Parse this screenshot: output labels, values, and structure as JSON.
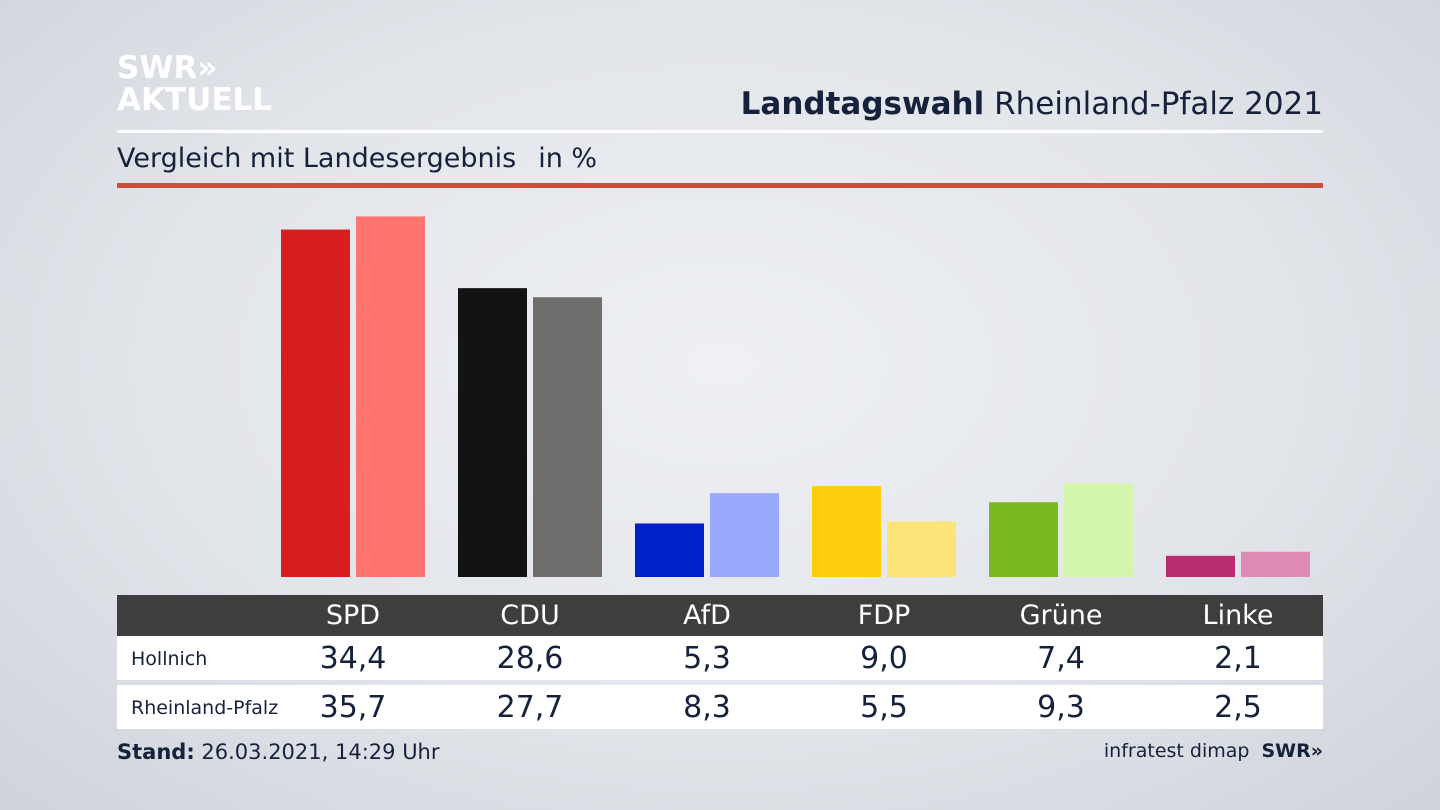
{
  "brand": {
    "logo_line1": "SWR»",
    "logo_line2": "AKTUELL"
  },
  "header": {
    "title_bold": "Landtagswahl",
    "title_rest": "Rheinland-Pfalz 2021",
    "subtitle": "Vergleich mit Landesergebnis",
    "unit": "in %"
  },
  "colors": {
    "accent_rule": "#c9503b",
    "table_header_bg": "#3e3e3e"
  },
  "chart_data": {
    "type": "bar",
    "categories": [
      "SPD",
      "CDU",
      "AfD",
      "FDP",
      "Grüne",
      "Linke"
    ],
    "series": [
      {
        "name": "Hollnich",
        "values": [
          34.4,
          28.6,
          5.3,
          9.0,
          7.4,
          2.1
        ],
        "colors": [
          "#d71f1f",
          "#131313",
          "#0020c8",
          "#fecc0a",
          "#78b920",
          "#b92d6e"
        ]
      },
      {
        "name": "Rheinland-Pfalz",
        "values": [
          35.7,
          27.7,
          8.3,
          5.5,
          9.3,
          2.5
        ],
        "colors": [
          "#ff746e",
          "#6f6e6c",
          "#9ba9fd",
          "#fee478",
          "#d3f5ac",
          "#e08bb5"
        ]
      }
    ],
    "grid": false,
    "legend": "none"
  },
  "table": {
    "headers": [
      "SPD",
      "CDU",
      "AfD",
      "FDP",
      "Grüne",
      "Linke"
    ],
    "rows": [
      {
        "label": "Hollnich",
        "values": [
          "34,4",
          "28,6",
          "5,3",
          "9,0",
          "7,4",
          "2,1"
        ]
      },
      {
        "label": "Rheinland-Pfalz",
        "values": [
          "35,7",
          "27,7",
          "8,3",
          "5,5",
          "9,3",
          "2,5"
        ]
      }
    ]
  },
  "footer": {
    "stand_label": "Stand:",
    "stand_value": "26.03.2021, 14:29 Uhr",
    "source": "infratest dimap",
    "source_logo": "SWR»"
  }
}
